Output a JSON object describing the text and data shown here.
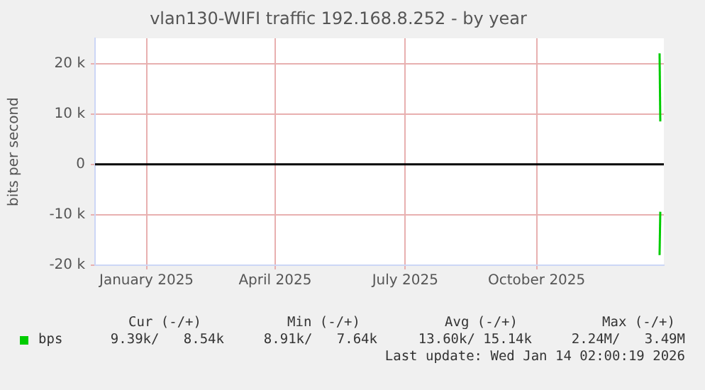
{
  "chart_data": {
    "type": "line",
    "title": "vlan130-WIFI traffic 192.168.8.252 - by year",
    "ylabel": "bits per second",
    "series": [
      {
        "name": "bps",
        "color": "#00cc00",
        "x": [
          "2026-01-11",
          "2026-01-11T12:00"
        ],
        "values": [
          22000,
          8500
        ]
      },
      {
        "color": "#00cc00",
        "x": [
          "2026-01-11",
          "2026-01-11T12:00"
        ],
        "values": [
          -18000,
          -9400
        ]
      }
    ],
    "xlim": [
      "2024-12-12",
      "2026-01-14"
    ],
    "xticks": [
      {
        "value": "2025-01-17",
        "label": "January 2025"
      },
      {
        "value": "2025-04-17",
        "label": "April 2025"
      },
      {
        "value": "2025-07-17",
        "label": "July 2025"
      },
      {
        "value": "2025-10-17",
        "label": "October 2025"
      }
    ],
    "ylim": [
      -20000,
      25000
    ],
    "yticks": [
      {
        "value": -20000,
        "label": "-20 k"
      },
      {
        "value": -10000,
        "label": "-10 k"
      },
      0,
      {
        "value": 10000,
        "label": "10 k"
      },
      {
        "value": 20000,
        "label": "20 k"
      }
    ],
    "ref_lines": [
      {
        "axis": "y",
        "value": 0,
        "color": "#000000"
      }
    ],
    "grid": true,
    "legend": "bottom left",
    "marker": "none",
    "line_style": "solid",
    "annotations": [
      "Cur (-/+)",
      "Min (-/+)",
      "Avg (-/+)",
      "Max (-/+)",
      "9.39k/   8.54k",
      "8.91k/   7.64k",
      "13.60k/ 15.14k",
      "2.24M/   3.49M",
      "Last update: Wed Jan 14 02:00:19 2026"
    ]
  }
}
